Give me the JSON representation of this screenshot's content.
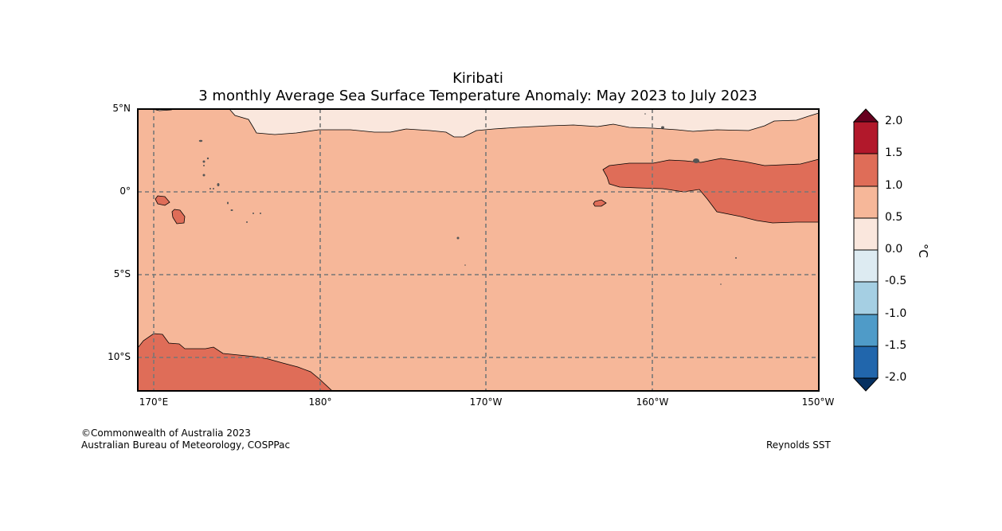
{
  "title": {
    "line1": "Kiribati",
    "line2": "3 monthly Average Sea Surface Temperature Anomaly: May 2023 to July 2023"
  },
  "axes": {
    "lat_labels": [
      "5°N",
      "0°",
      "5°S",
      "10°S"
    ],
    "lon_labels": [
      "170°E",
      "180°",
      "170°W",
      "160°W",
      "150°W"
    ]
  },
  "colorbar": {
    "unit": "°C",
    "ticks": [
      "2.0",
      "1.5",
      "1.0",
      "0.5",
      "0.0",
      "-0.5",
      "-1.0",
      "-1.5",
      "-2.0"
    ],
    "colors": {
      "above_2_0": "#67001f",
      "c_1_5_to_2_0": "#b2182b",
      "c_1_0_to_1_5": "#df6d58",
      "c_0_5_to_1_0": "#f6b799",
      "c_0_0_to_0_5": "#fae7dd",
      "c_neg0_5_to_0_0": "#ddebf2",
      "c_neg1_0_to_neg0_5": "#a5cfe3",
      "c_neg1_5_to_neg1_0": "#4f9bc8",
      "c_neg2_0_to_neg1_5": "#2166ac",
      "below_neg2_0": "#053061"
    }
  },
  "footer": {
    "copyright": "©Commonwealth of Australia 2023",
    "agency": "Australian Bureau of Meteorology, COSPPac",
    "source": "Reynolds SST"
  }
}
